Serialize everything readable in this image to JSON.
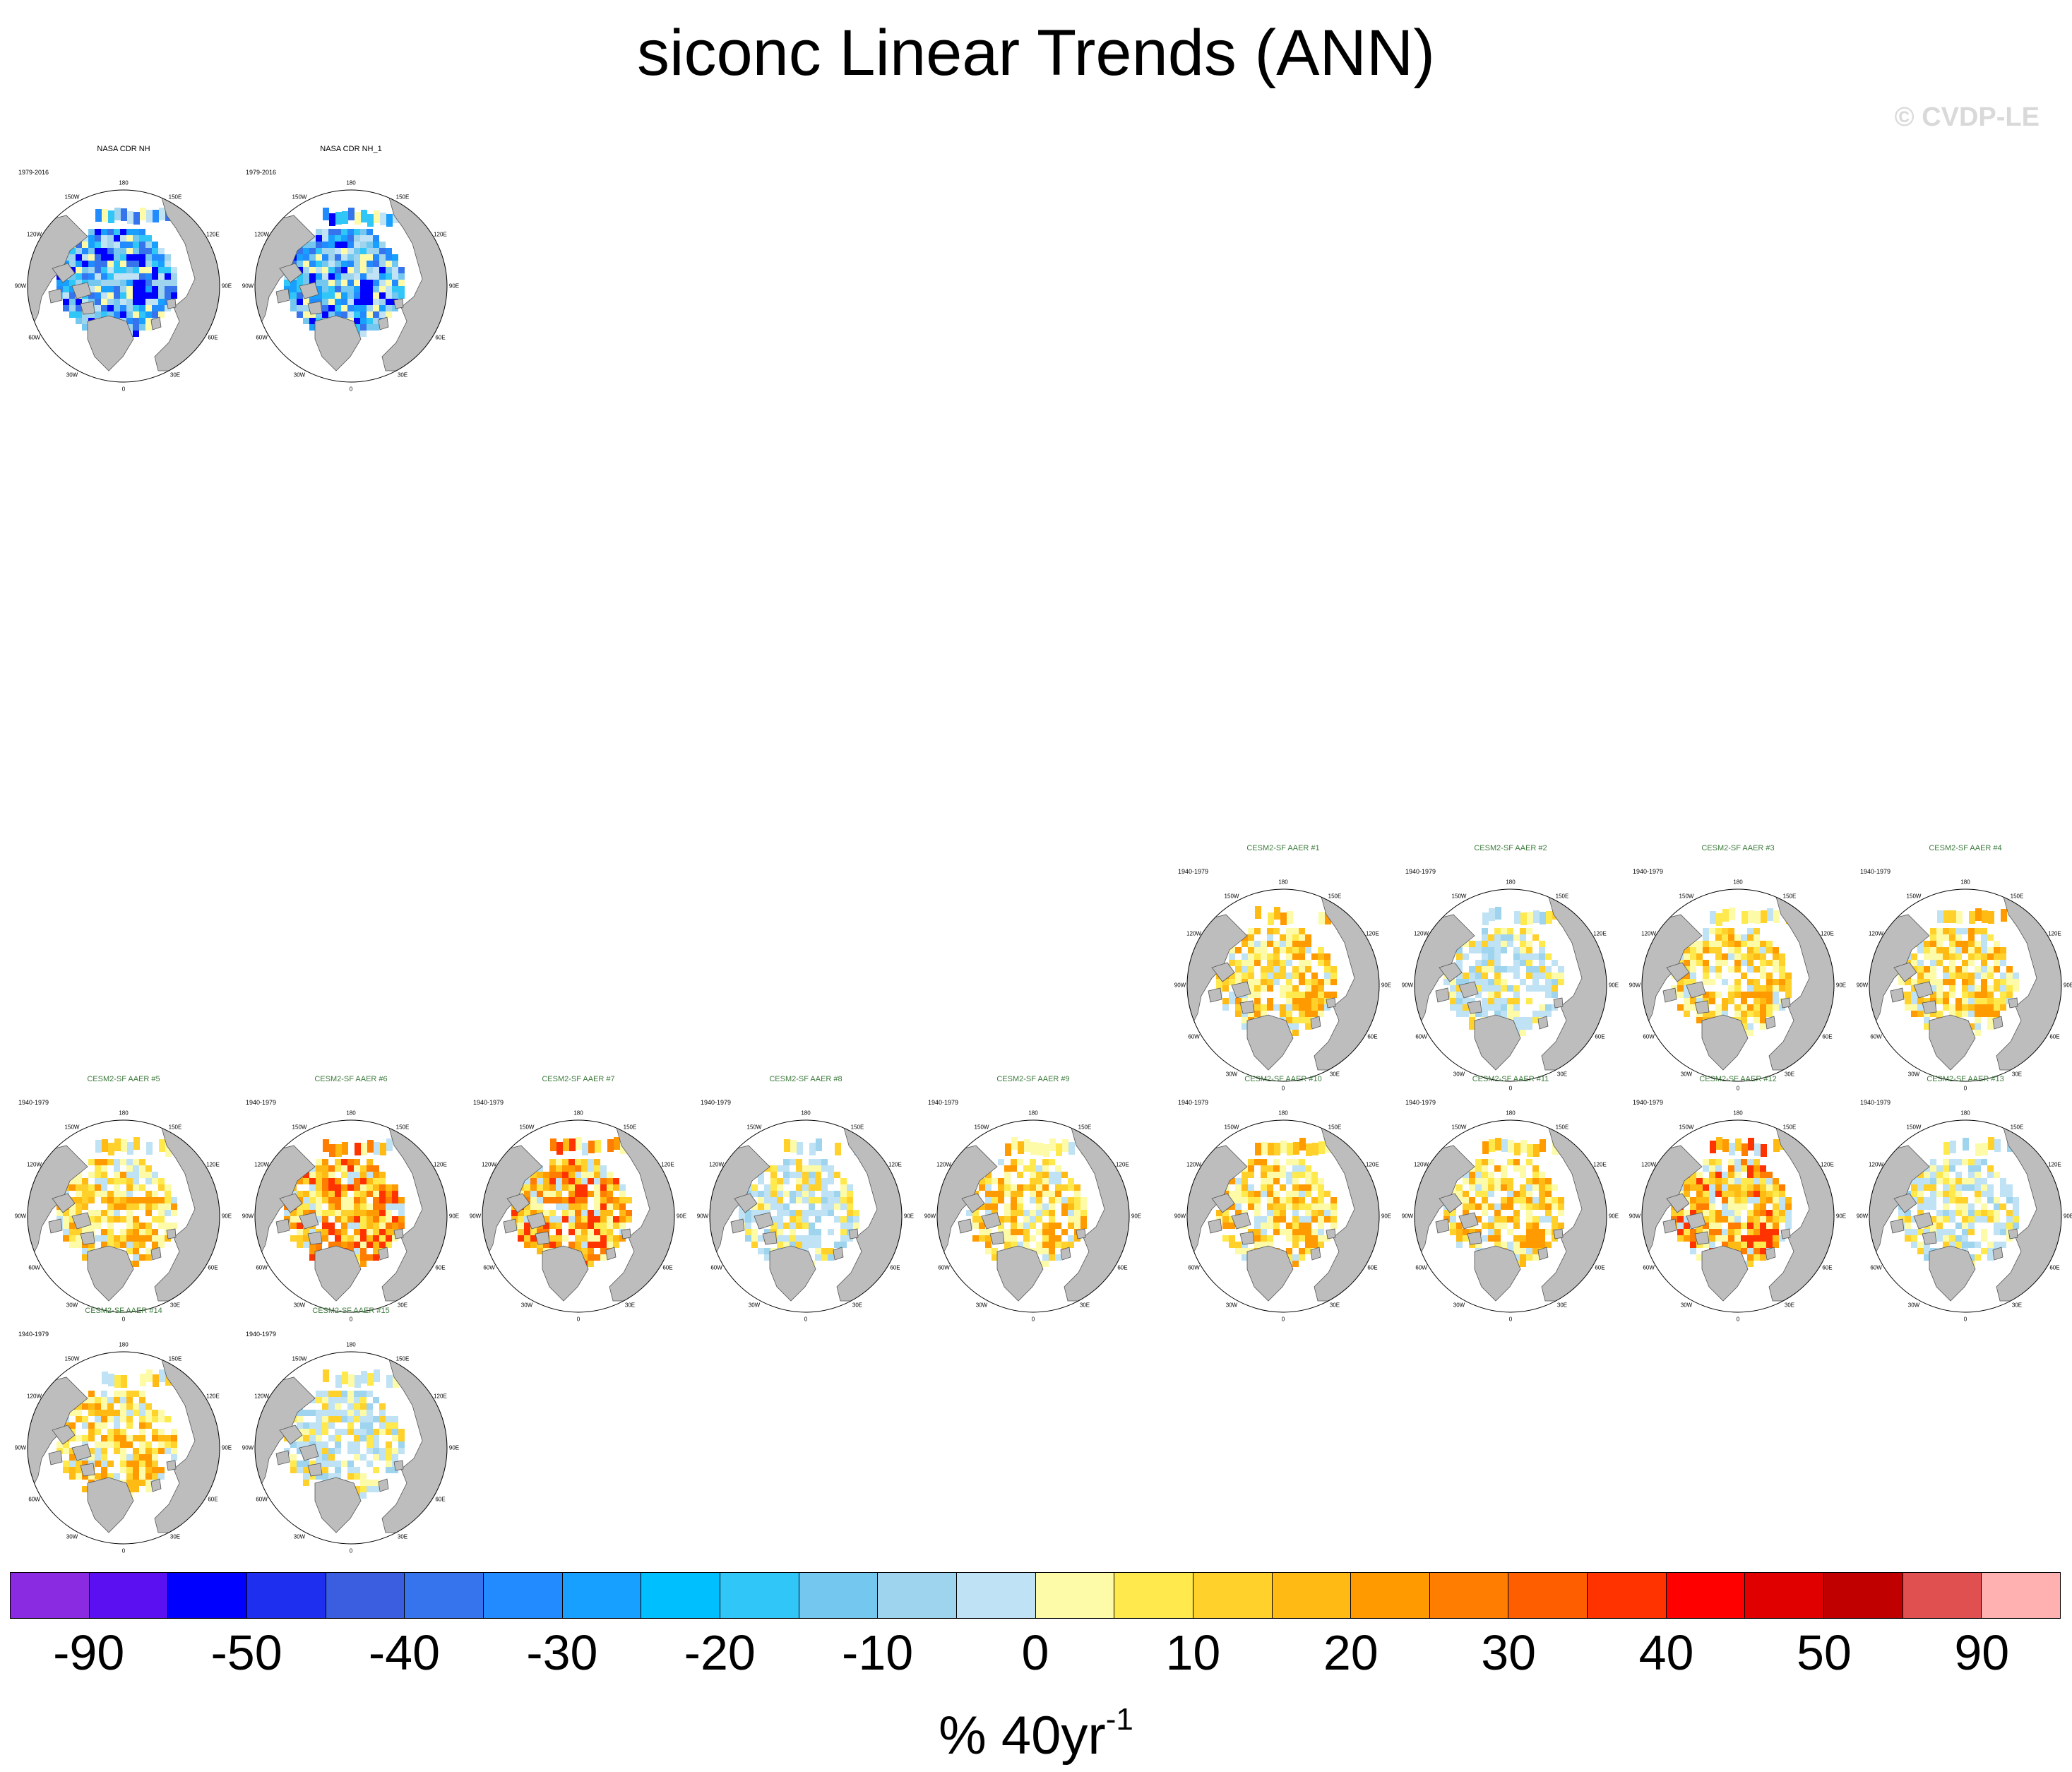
{
  "title": "siconc Linear Trends (ANN)",
  "copyright": "© CVDP-LE",
  "lon_labels": [
    "180",
    "150W",
    "150E",
    "120W",
    "120E",
    "90W",
    "90E",
    "60W",
    "60E",
    "30W",
    "30E",
    "0"
  ],
  "panels": [
    {
      "title": "NASA CDR NH",
      "period": "1979-2016",
      "kind": "obs",
      "tone": "neg"
    },
    {
      "title": "NASA CDR NH_1",
      "period": "1979-2016",
      "kind": "obs",
      "tone": "neg"
    },
    {
      "title": "CESM2-SF AAER #1",
      "period": "1940-1979",
      "kind": "model",
      "tone": "pos"
    },
    {
      "title": "CESM2-SF AAER #2",
      "period": "1940-1979",
      "kind": "model",
      "tone": "weak"
    },
    {
      "title": "CESM2-SF AAER #3",
      "period": "1940-1979",
      "kind": "model",
      "tone": "pos"
    },
    {
      "title": "CESM2-SF AAER #4",
      "period": "1940-1979",
      "kind": "model",
      "tone": "pos"
    },
    {
      "title": "CESM2-SF AAER #5",
      "period": "1940-1979",
      "kind": "model",
      "tone": "pos"
    },
    {
      "title": "CESM2-SF AAER #6",
      "period": "1940-1979",
      "kind": "model",
      "tone": "strong"
    },
    {
      "title": "CESM2-SF AAER #7",
      "period": "1940-1979",
      "kind": "model",
      "tone": "strong"
    },
    {
      "title": "CESM2-SF AAER #8",
      "period": "1940-1979",
      "kind": "model",
      "tone": "weak"
    },
    {
      "title": "CESM2-SF AAER #9",
      "period": "1940-1979",
      "kind": "model",
      "tone": "pos"
    },
    {
      "title": "CESM2-SF AAER #10",
      "period": "1940-1979",
      "kind": "model",
      "tone": "pos"
    },
    {
      "title": "CESM2-SF AAER #11",
      "period": "1940-1979",
      "kind": "model",
      "tone": "pos"
    },
    {
      "title": "CESM2-SF AAER #12",
      "period": "1940-1979",
      "kind": "model",
      "tone": "strong"
    },
    {
      "title": "CESM2-SF AAER #13",
      "period": "1940-1979",
      "kind": "model",
      "tone": "weak"
    },
    {
      "title": "CESM2-SF AAER #14",
      "period": "1940-1979",
      "kind": "model",
      "tone": "pos"
    },
    {
      "title": "CESM2-SF AAER #15",
      "period": "1940-1979",
      "kind": "model",
      "tone": "weak"
    }
  ],
  "colorbar": {
    "colors": [
      "#8a2be2",
      "#5a10f0",
      "#0000ff",
      "#1e2ff0",
      "#3b5de0",
      "#3574ec",
      "#228bff",
      "#17a0ff",
      "#00bfff",
      "#30c6f8",
      "#74c8f0",
      "#9ed4ee",
      "#bfe2f4",
      "#fdfba8",
      "#ffe94d",
      "#ffd12a",
      "#ffbb14",
      "#ff9b00",
      "#ff7d00",
      "#ff5e00",
      "#ff3300",
      "#ff0000",
      "#e00000",
      "#c00000",
      "#e05050",
      "#ffb0b0"
    ],
    "tick_labels": [
      "-90",
      "-50",
      "-40",
      "-30",
      "-20",
      "-10",
      "0",
      "10",
      "20",
      "30",
      "40",
      "50",
      "90"
    ],
    "units_main": "% 40yr",
    "units_exp": "-1"
  }
}
